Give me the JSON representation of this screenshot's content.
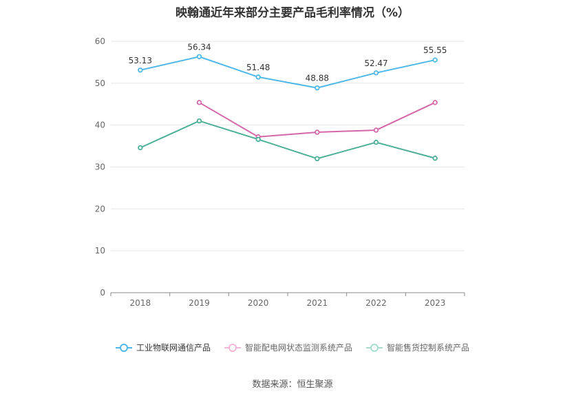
{
  "chart_data": {
    "type": "line",
    "title": "映翰通近年来部分主要产品毛利率情况（%）",
    "categories": [
      "2018",
      "2019",
      "2020",
      "2021",
      "2022",
      "2023"
    ],
    "ylim": [
      0,
      60
    ],
    "yticks": [
      "0",
      "10",
      "20",
      "30",
      "40",
      "50",
      "60"
    ],
    "grid": true,
    "legend_position": "bottom",
    "series": [
      {
        "name": "工业物联网通信产品",
        "color": "#4db8e8",
        "values": [
          53.13,
          56.34,
          51.48,
          48.88,
          52.47,
          55.55
        ],
        "labels": [
          "53.13",
          "56.34",
          "51.48",
          "48.88",
          "52.47",
          "55.55"
        ]
      },
      {
        "name": "智能配电网状态监测系统产品",
        "color": "#d467a8",
        "values": [
          null,
          45.4,
          37.2,
          38.3,
          38.8,
          45.4
        ]
      },
      {
        "name": "智能售货控制系统产品",
        "color": "#4caf98",
        "values": [
          34.6,
          41.0,
          36.6,
          32.0,
          35.9,
          32.1
        ]
      }
    ]
  },
  "source": "数据来源：恒生聚源"
}
